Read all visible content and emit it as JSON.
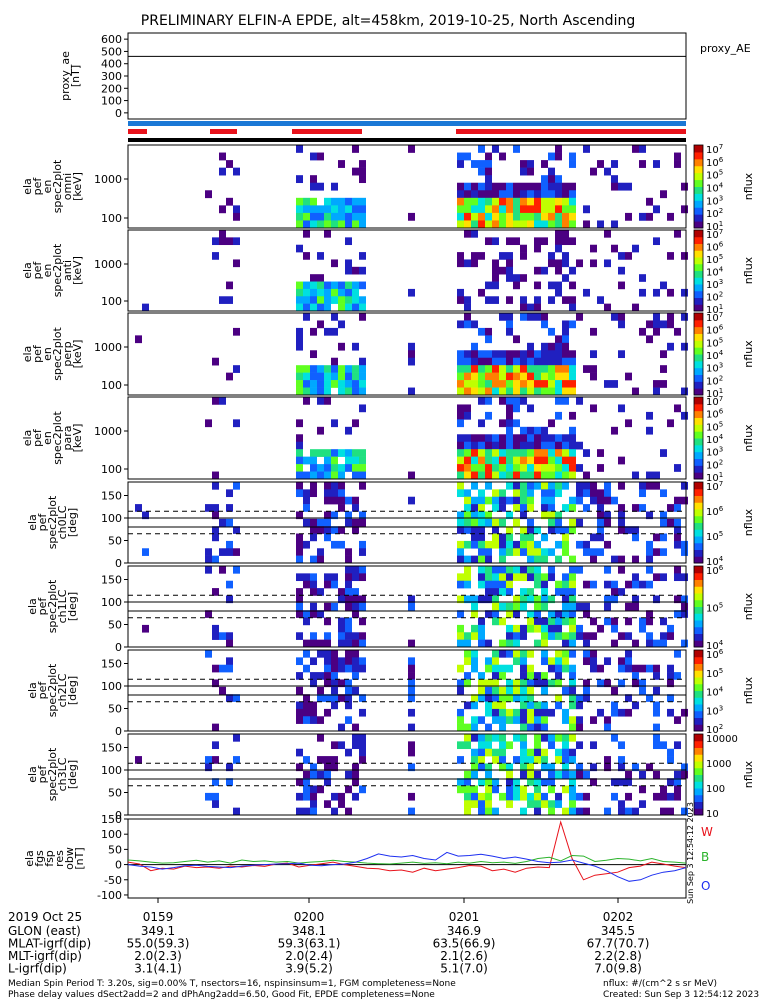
{
  "title": "PRELIMINARY ELFIN-A EPDE, alt=458km, 2019-10-25, North Ascending",
  "side_stamp": "Sun Sep 3 12:54:12 2023",
  "colors": {
    "blue_bar": "#1a78d6",
    "red_bar": "#e8121b",
    "w_color": "#e8121b",
    "b_color": "#2bb32b",
    "o_color": "#1d2ff0"
  },
  "footer": {
    "lines": [
      "Median Spin Period T: 3.20s, sig=0.00% T, nsectors=16, nspinsinsum=1, FGM completeness=None",
      "Phase delay values dSect2add=2 and dPhAng2add=6.50, Good Fit, EPDE completeness=None"
    ],
    "nflux_units": "nflux: #/(cm^2 s sr MeV)",
    "created": "Created: Sun Sep  3 12:54:12 2023"
  },
  "ephemeris": {
    "date": "2019 Oct 25",
    "times": [
      "0159",
      "0200",
      "0201",
      "0202"
    ],
    "rows": [
      {
        "label": "GLON (east)",
        "values": [
          "349.1",
          "348.1",
          "346.9",
          "345.5"
        ]
      },
      {
        "label": "MLAT-igrf(dip)",
        "values": [
          "55.0(59.3)",
          "59.3(63.1)",
          "63.5(66.9)",
          "67.7(70.7)"
        ]
      },
      {
        "label": "MLT-igrf(dip)",
        "values": [
          "2.0(2.3)",
          "2.0(2.4)",
          "2.1(2.6)",
          "2.2(2.8)"
        ]
      },
      {
        "label": "L-igrf(dip)",
        "values": [
          "3.1(4.1)",
          "3.9(5.2)",
          "5.1(7.0)",
          "7.0(9.8)"
        ]
      }
    ]
  },
  "chart_data": [
    {
      "type": "line",
      "name": "proxy_ae",
      "ylabel_lines": [
        "proxy_ae",
        "[nT]"
      ],
      "right_label": "proxy_AE",
      "ylim": [
        -50,
        650
      ],
      "yticks": [
        "0",
        "100",
        "200",
        "300",
        "400",
        "500",
        "600"
      ],
      "series": [
        {
          "values": [
            460,
            460
          ]
        }
      ]
    },
    {
      "type": "heatmap",
      "name": "omni",
      "ylabel_lines": [
        "ela",
        "pef",
        "en",
        "spec2plot",
        "omni",
        "[keV]"
      ],
      "yscale": "log",
      "ytick_labels": [
        "100",
        "1000"
      ],
      "cb_ticks": [
        "10^1",
        "10^2",
        "10^3",
        "10^4",
        "10^5",
        "10^6",
        "10^7"
      ],
      "cb_label": "nflux"
    },
    {
      "type": "heatmap",
      "name": "anti",
      "ylabel_lines": [
        "ela",
        "pef",
        "en",
        "spec2plot",
        "anti",
        "[keV]"
      ],
      "yscale": "log",
      "ytick_labels": [
        "100",
        "1000"
      ],
      "cb_ticks": [
        "10^1",
        "10^2",
        "10^3",
        "10^4",
        "10^5",
        "10^6",
        "10^7"
      ],
      "cb_label": "nflux"
    },
    {
      "type": "heatmap",
      "name": "perp",
      "ylabel_lines": [
        "ela",
        "pef",
        "en",
        "spec2plot",
        "perp",
        "[keV]"
      ],
      "yscale": "log",
      "ytick_labels": [
        "100",
        "1000"
      ],
      "cb_ticks": [
        "10^1",
        "10^2",
        "10^3",
        "10^4",
        "10^5",
        "10^6",
        "10^7"
      ],
      "cb_label": "nflux"
    },
    {
      "type": "heatmap",
      "name": "para",
      "ylabel_lines": [
        "ela",
        "pef",
        "en",
        "spec2plot",
        "para",
        "[keV]"
      ],
      "yscale": "log",
      "ytick_labels": [
        "100",
        "1000"
      ],
      "cb_ticks": [
        "10^1",
        "10^2",
        "10^3",
        "10^4",
        "10^5",
        "10^6",
        "10^7"
      ],
      "cb_label": "nflux"
    },
    {
      "type": "heatmap",
      "name": "ch0LC",
      "ylabel_lines": [
        "ela",
        "pef",
        "spec2plot",
        "ch0LC",
        "[deg]"
      ],
      "ylim": [
        0,
        180
      ],
      "ytick_labels": [
        "0",
        "50",
        "100",
        "150"
      ],
      "cb_ticks": [
        "10^4",
        "10^5",
        "10^6",
        "10^7"
      ],
      "cb_label": "nflux"
    },
    {
      "type": "heatmap",
      "name": "ch1LC",
      "ylabel_lines": [
        "ela",
        "pef",
        "spec2plot",
        "ch1LC",
        "[deg]"
      ],
      "ylim": [
        0,
        180
      ],
      "ytick_labels": [
        "0",
        "50",
        "100",
        "150"
      ],
      "cb_ticks": [
        "10^4",
        "10^5",
        "10^6"
      ],
      "cb_label": "nflux"
    },
    {
      "type": "heatmap",
      "name": "ch2LC",
      "ylabel_lines": [
        "ela",
        "pef",
        "spec2plot",
        "ch2LC",
        "[deg]"
      ],
      "ylim": [
        0,
        180
      ],
      "ytick_labels": [
        "0",
        "50",
        "100",
        "150"
      ],
      "cb_ticks": [
        "10^2",
        "10^3",
        "10^4",
        "10^5",
        "10^6"
      ],
      "cb_label": "nflux"
    },
    {
      "type": "heatmap",
      "name": "ch3LC",
      "ylabel_lines": [
        "ela",
        "pef",
        "spec2plot",
        "ch3LC",
        "[deg]"
      ],
      "ylim": [
        0,
        180
      ],
      "ytick_labels": [
        "0",
        "50",
        "100",
        "150"
      ],
      "cb_ticks": [
        "10",
        "100",
        "1000",
        "10000"
      ],
      "cb_label": "nflux"
    },
    {
      "type": "line",
      "name": "fgs",
      "ylabel_lines": [
        "ela",
        "fgs",
        "fsp",
        "res",
        "obw",
        "[nT]"
      ],
      "ylim": [
        -110,
        150
      ],
      "yticks": [
        "-100",
        "-50",
        "0",
        "50",
        "100",
        "150"
      ],
      "legend": [
        "W",
        "B",
        "O"
      ],
      "series": [
        {
          "name": "W",
          "values": [
            8,
            2,
            -20,
            -12,
            -15,
            -5,
            -10,
            -8,
            -12,
            -5,
            -8,
            -3,
            -6,
            2,
            5,
            -8,
            -2,
            3,
            8,
            0,
            -6,
            -12,
            -14,
            -20,
            -18,
            -25,
            -12,
            -20,
            -15,
            -10,
            -3,
            -5,
            -20,
            -15,
            -25,
            -12,
            -8,
            -10,
            140,
            20,
            -50,
            -35,
            -30,
            -25,
            -10,
            -5,
            8,
            2,
            -5,
            -10
          ]
        },
        {
          "name": "B",
          "values": [
            15,
            12,
            8,
            5,
            6,
            10,
            14,
            8,
            12,
            5,
            15,
            10,
            12,
            8,
            10,
            5,
            8,
            10,
            14,
            10,
            8,
            5,
            3,
            2,
            5,
            8,
            4,
            6,
            3,
            8,
            5,
            10,
            6,
            8,
            4,
            10,
            20,
            24,
            12,
            30,
            28,
            10,
            14,
            20,
            18,
            12,
            20,
            10,
            8,
            5
          ]
        },
        {
          "name": "O",
          "values": [
            0,
            -5,
            -8,
            -15,
            -10,
            -4,
            -2,
            -6,
            -8,
            -10,
            -5,
            -2,
            0,
            2,
            3,
            5,
            -2,
            -4,
            0,
            2,
            8,
            20,
            35,
            28,
            25,
            30,
            20,
            15,
            40,
            28,
            30,
            34,
            28,
            20,
            25,
            18,
            10,
            6,
            8,
            15,
            5,
            -5,
            -20,
            -40,
            -55,
            -50,
            -35,
            -25,
            -20,
            -10
          ]
        }
      ]
    }
  ]
}
